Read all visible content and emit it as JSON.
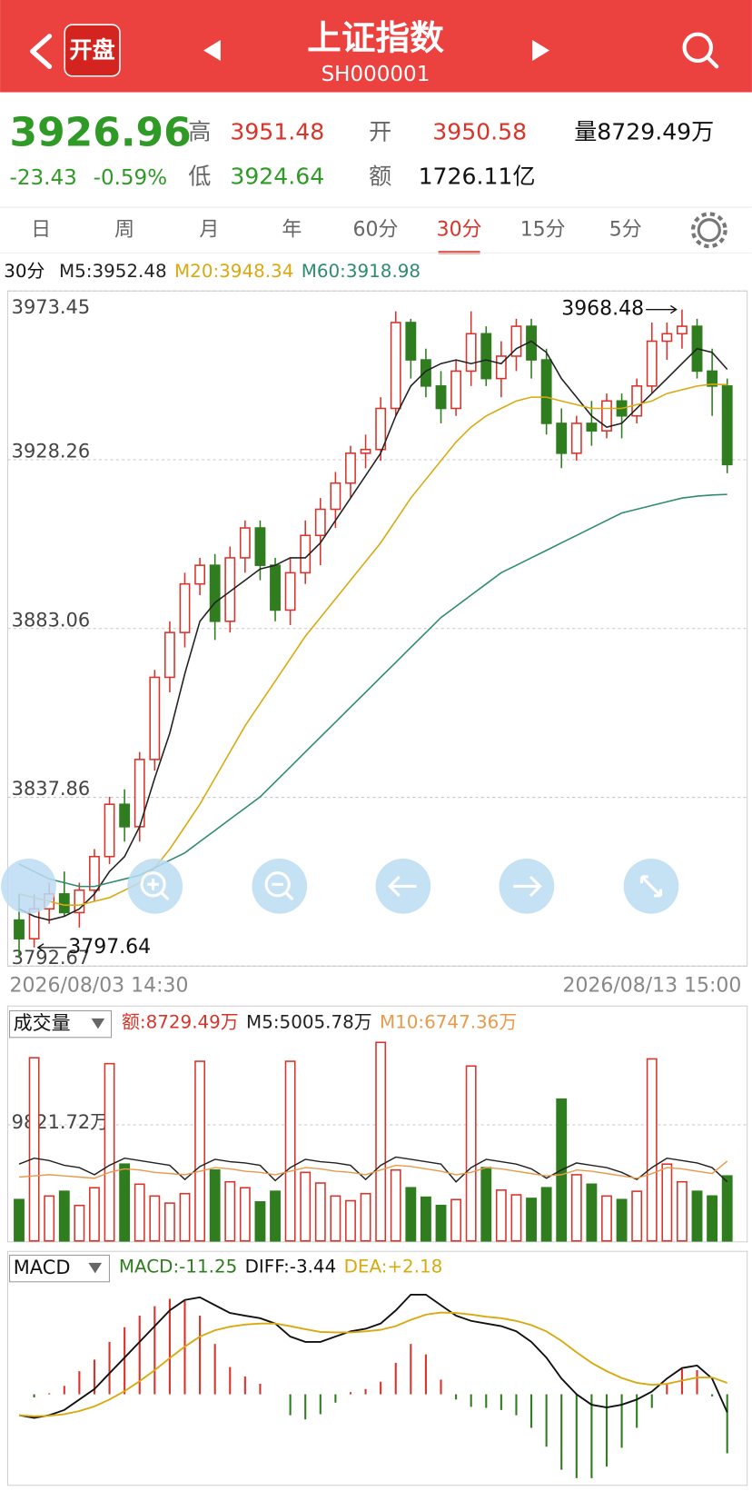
{
  "header": {
    "badge": "开盘",
    "title": "上证指数",
    "code": "SH000001"
  },
  "quote": {
    "price": "3926.96",
    "change": "-23.43",
    "change_pct": "-0.59%",
    "high_label": "高",
    "high": "3951.48",
    "low_label": "低",
    "low": "3924.64",
    "open_label": "开",
    "open": "3950.58",
    "amount_label": "额",
    "amount": "1726.11亿",
    "volume": "量8729.49万"
  },
  "tabs": {
    "items": [
      "日",
      "周",
      "月",
      "年",
      "60分",
      "30分",
      "15分",
      "5分"
    ],
    "active": 5
  },
  "chart_data": [
    {
      "type": "candlestick",
      "period": "30分",
      "up_color": "#d9342b",
      "down_color": "#2f7d1f",
      "ylim": [
        3792.67,
        3973.45
      ],
      "yticks": [
        3792.67,
        3837.86,
        3883.06,
        3928.26,
        3973.45
      ],
      "grid": true,
      "x_start": "2026/08/03 14:30",
      "x_end": "2026/08/13 15:00",
      "high_mark": 3968.48,
      "low_mark": 3797.64,
      "candles": [
        [
          3805,
          3812,
          3795,
          3800
        ],
        [
          3800,
          3812,
          3797.64,
          3808
        ],
        [
          3808,
          3815,
          3804,
          3812
        ],
        [
          3812,
          3818,
          3806,
          3807
        ],
        [
          3807,
          3815,
          3803,
          3813
        ],
        [
          3813,
          3824,
          3810,
          3822
        ],
        [
          3822,
          3838,
          3820,
          3836
        ],
        [
          3836,
          3840,
          3826,
          3830
        ],
        [
          3830,
          3850,
          3826,
          3848
        ],
        [
          3848,
          3872,
          3845,
          3870
        ],
        [
          3870,
          3885,
          3866,
          3882
        ],
        [
          3882,
          3898,
          3878,
          3895
        ],
        [
          3895,
          3902,
          3892,
          3900
        ],
        [
          3900,
          3903,
          3880,
          3885
        ],
        [
          3885,
          3905,
          3882,
          3902
        ],
        [
          3902,
          3912,
          3898,
          3910
        ],
        [
          3910,
          3912,
          3896,
          3900
        ],
        [
          3900,
          3902,
          3885,
          3888
        ],
        [
          3888,
          3902,
          3884,
          3898
        ],
        [
          3898,
          3912,
          3895,
          3908
        ],
        [
          3908,
          3918,
          3900,
          3915
        ],
        [
          3915,
          3925,
          3910,
          3922
        ],
        [
          3922,
          3932,
          3918,
          3930
        ],
        [
          3930,
          3935,
          3926,
          3931
        ],
        [
          3931,
          3945,
          3928,
          3942
        ],
        [
          3942,
          3968,
          3940,
          3965
        ],
        [
          3965,
          3966,
          3950,
          3955
        ],
        [
          3955,
          3958,
          3945,
          3948
        ],
        [
          3948,
          3952,
          3938,
          3942
        ],
        [
          3942,
          3955,
          3940,
          3952
        ],
        [
          3952,
          3968,
          3948,
          3962
        ],
        [
          3962,
          3964,
          3948,
          3950
        ],
        [
          3950,
          3960,
          3945,
          3956
        ],
        [
          3956,
          3966,
          3952,
          3964
        ],
        [
          3964,
          3966,
          3950,
          3955
        ],
        [
          3955,
          3958,
          3935,
          3938
        ],
        [
          3938,
          3942,
          3926,
          3930
        ],
        [
          3930,
          3940,
          3928,
          3938
        ],
        [
          3938,
          3944,
          3932,
          3936
        ],
        [
          3936,
          3946,
          3934,
          3944
        ],
        [
          3944,
          3946,
          3934,
          3940
        ],
        [
          3940,
          3950,
          3938,
          3948
        ],
        [
          3948,
          3965,
          3946,
          3960
        ],
        [
          3960,
          3965,
          3955,
          3962
        ],
        [
          3962,
          3968.48,
          3958,
          3964
        ],
        [
          3964,
          3966,
          3950,
          3952
        ],
        [
          3952,
          3958,
          3940,
          3948
        ],
        [
          3948,
          3950,
          3924.64,
          3926.96
        ]
      ],
      "series": [
        {
          "name": "M5:3952.48",
          "color": "#222222",
          "values": [
            3808,
            3806,
            3805,
            3806,
            3808,
            3812,
            3818,
            3822,
            3830,
            3843,
            3855,
            3871,
            3885,
            3890,
            3893,
            3896,
            3899,
            3900,
            3902,
            3902,
            3906,
            3912,
            3918,
            3924,
            3930,
            3940,
            3948,
            3952,
            3954,
            3955,
            3954,
            3955,
            3954,
            3958,
            3960,
            3957,
            3950,
            3945,
            3940,
            3937,
            3938,
            3942,
            3946,
            3950,
            3954,
            3958,
            3957,
            3952.48
          ]
        },
        {
          "name": "M20:3948.34",
          "color": "#d9a90f",
          "values": [
            3812,
            3811,
            3810,
            3809,
            3809,
            3810,
            3811,
            3813,
            3815,
            3819,
            3824,
            3830,
            3836,
            3843,
            3850,
            3857,
            3863,
            3869,
            3875,
            3881,
            3886,
            3891,
            3896,
            3901,
            3906,
            3912,
            3918,
            3923,
            3928,
            3933,
            3937,
            3940,
            3942,
            3944,
            3945,
            3945,
            3944,
            3943,
            3942,
            3942,
            3942,
            3943,
            3944,
            3946,
            3947,
            3948,
            3948.5,
            3948.34
          ]
        },
        {
          "name": "M60:3918.98",
          "color": "#2e8b6e",
          "values": [
            3820,
            3818,
            3816,
            3815,
            3814,
            3814,
            3815,
            3816,
            3817,
            3819,
            3821,
            3823,
            3826,
            3829,
            3832,
            3835,
            3838,
            3842,
            3846,
            3850,
            3854,
            3858,
            3862,
            3866,
            3870,
            3874,
            3878,
            3882,
            3886,
            3889,
            3892,
            3895,
            3898,
            3900,
            3902,
            3904,
            3906,
            3908,
            3910,
            3912,
            3914,
            3915,
            3916,
            3917,
            3918,
            3918.5,
            3918.8,
            3918.98
          ]
        }
      ]
    },
    {
      "type": "volume",
      "title": "成交量",
      "ylim": [
        0,
        17300
      ],
      "yticks": [
        {
          "value": 9821.72,
          "label": "9821.72万"
        }
      ],
      "series": [
        {
          "name": "额:8729.49万",
          "color": "#d9342b",
          "values": [
            3500,
            15500,
            3800,
            4200,
            3000,
            4500,
            15000,
            6500,
            4800,
            3800,
            3200,
            4000,
            15200,
            6000,
            5000,
            4500,
            3300,
            4200,
            15200,
            5800,
            4900,
            3800,
            3400,
            4000,
            16800,
            6000,
            4500,
            3700,
            3000,
            3500,
            14800,
            6200,
            4300,
            3900,
            3600,
            4500,
            12000,
            5600,
            4800,
            3800,
            3500,
            4200,
            15400,
            6500,
            5000,
            4200,
            3800,
            5500
          ]
        },
        {
          "name": "M5:5005.78万",
          "color": "#222222",
          "values": [
            6500,
            7000,
            6800,
            6400,
            6200,
            5600,
            6400,
            7000,
            6800,
            6600,
            6400,
            5200,
            6300,
            6900,
            6700,
            6600,
            6400,
            5100,
            6200,
            6900,
            6700,
            6600,
            6400,
            5200,
            6400,
            7100,
            6900,
            6700,
            6500,
            5000,
            6200,
            6900,
            6700,
            6500,
            6100,
            5300,
            6000,
            6600,
            6400,
            6200,
            5800,
            5200,
            6200,
            7000,
            6800,
            6600,
            6200,
            5005.78
          ]
        },
        {
          "name": "M10:6747.36万",
          "color": "#e89a4a",
          "values": [
            5400,
            5500,
            5600,
            5500,
            5400,
            5300,
            5800,
            6100,
            6000,
            5800,
            5700,
            5600,
            5900,
            6200,
            6100,
            5900,
            5800,
            5600,
            5900,
            6200,
            6100,
            5900,
            5800,
            5600,
            6000,
            6400,
            6300,
            6100,
            5900,
            5600,
            5800,
            6200,
            6100,
            5900,
            5700,
            5500,
            5600,
            6000,
            5900,
            5700,
            5500,
            5300,
            5700,
            6200,
            6100,
            5900,
            5700,
            6747.36
          ]
        }
      ]
    },
    {
      "type": "macd",
      "title": "MACD",
      "ylim": [
        -17,
        22
      ],
      "series": [
        {
          "name": "MACD:-11.25",
          "color": "#2f7d1f",
          "values": [
            0,
            -0.6,
            0.2,
            1.6,
            4.4,
            6.6,
            10,
            12.8,
            15,
            16.8,
            18.2,
            17.8,
            15,
            9.6,
            5.2,
            3.4,
            2,
            0,
            -4,
            -4.8,
            -3.8,
            -1.6,
            0.4,
            1,
            2.4,
            6,
            9.6,
            7.6,
            2.8,
            -1,
            -2.4,
            -2.6,
            -3,
            -4,
            -6.4,
            -10,
            -14.4,
            -16,
            -16,
            -13.8,
            -10.2,
            -6.4,
            -2.6,
            2,
            4.8,
            4.6,
            -0.4,
            -11.25
          ]
        },
        {
          "name": "DIFF:-3.44",
          "color": "#111111",
          "values": [
            -4,
            -4.5,
            -4,
            -3,
            -1,
            1,
            4,
            7,
            10,
            13,
            16,
            18,
            18.5,
            17,
            15.5,
            15,
            14.5,
            13.5,
            11,
            10,
            10,
            11,
            12,
            12.5,
            13.5,
            16,
            19,
            19,
            17,
            15,
            14,
            13.5,
            13,
            12,
            10,
            7,
            3,
            0,
            -2,
            -2.5,
            -2,
            -1,
            0.5,
            3,
            5,
            5.5,
            3,
            -3.44
          ]
        },
        {
          "name": "DEA:+2.18",
          "color": "#d9a90f",
          "values": [
            -4,
            -4.2,
            -4.1,
            -3.8,
            -3.2,
            -2.3,
            -1,
            0.6,
            2.5,
            4.6,
            6.9,
            9.1,
            11,
            12.2,
            12.9,
            13.3,
            13.5,
            13.5,
            13,
            12.4,
            11.9,
            11.8,
            11.8,
            12,
            12.3,
            13,
            14.2,
            15.2,
            15.6,
            15.5,
            15.2,
            14.8,
            14.5,
            14,
            13.2,
            12,
            10.2,
            8,
            6,
            4.4,
            3.1,
            2.2,
            1.8,
            2,
            2.6,
            3.2,
            3.2,
            2.18
          ]
        }
      ]
    }
  ]
}
